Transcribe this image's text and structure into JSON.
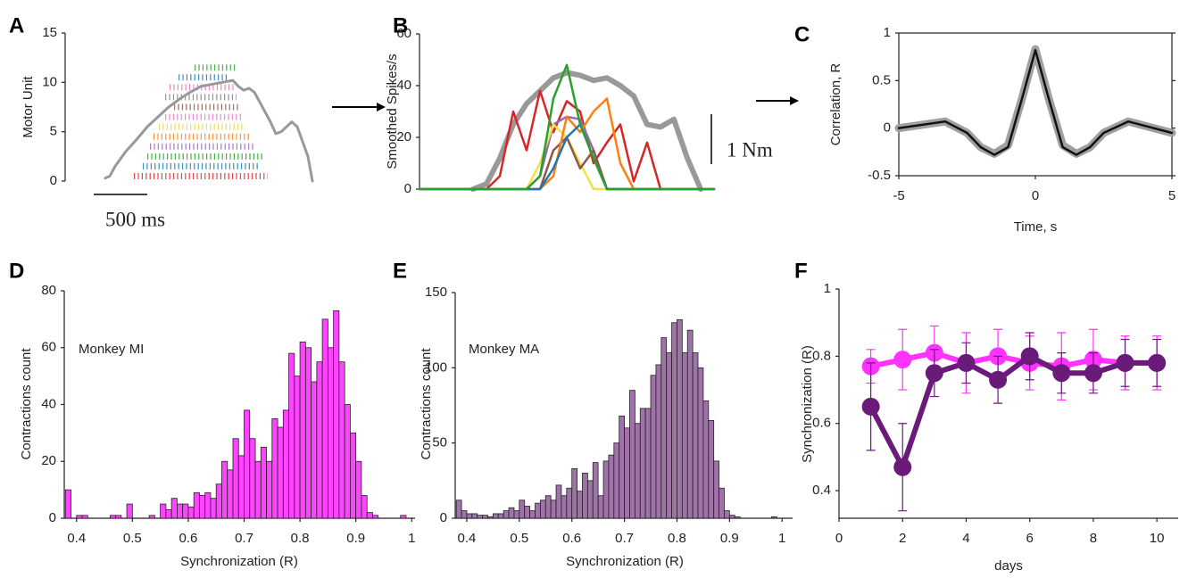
{
  "chart_data": [
    {
      "type": "raster",
      "panel": "A",
      "ylabel": "Motor Unit",
      "ylim": [
        0,
        15
      ],
      "yticks": [
        0,
        5,
        10,
        15
      ],
      "xlim": [
        0,
        2100
      ],
      "scalebar": {
        "value": 500,
        "label": "500 ms"
      },
      "raster": [
        {
          "unit": 0.5,
          "start": 375,
          "end": 1625,
          "color": "#d62728"
        },
        {
          "unit": 1.5,
          "start": 458,
          "end": 1542,
          "color": "#1f77b4"
        },
        {
          "unit": 2.5,
          "start": 500,
          "end": 1583,
          "color": "#2ca02c"
        },
        {
          "unit": 3.5,
          "start": 525,
          "end": 1500,
          "color": "#9467bd"
        },
        {
          "unit": 4.5,
          "start": 558,
          "end": 1458,
          "color": "#ff7f0e"
        },
        {
          "unit": 5.5,
          "start": 608,
          "end": 1417,
          "color": "#e6d74a"
        },
        {
          "unit": 6.5,
          "start": 667,
          "end": 1392,
          "color": "#e377c2"
        },
        {
          "unit": 7.5,
          "start": 750,
          "end": 1358,
          "color": "#8c564b"
        },
        {
          "unit": 8.5,
          "start": 667,
          "end": 1333,
          "color": "#7f7f7f"
        },
        {
          "unit": 9.5,
          "start": 708,
          "end": 1308,
          "color": "#e377c2"
        },
        {
          "unit": 10.5,
          "start": 792,
          "end": 1250,
          "color": "#1f77b4"
        },
        {
          "unit": 11.5,
          "start": 942,
          "end": 1333,
          "color": "#2ca02c"
        }
      ],
      "series": [
        {
          "color": "#999999",
          "x": [
            108,
            150,
            200,
            300,
            400,
            500,
            600,
            700,
            800,
            900,
            1000,
            1100,
            1200,
            1300,
            1350,
            1400,
            1450,
            1500,
            1550,
            1600,
            1650,
            1700,
            1750,
            1800,
            1850,
            1900,
            1950,
            2000,
            2042
          ],
          "values": [
            0.3,
            0.5,
            1.5,
            3,
            4.2,
            5.5,
            6.5,
            7.5,
            8.3,
            9,
            9.6,
            9.8,
            10,
            10.2,
            9.6,
            9.2,
            9.4,
            9,
            8,
            7,
            6,
            4.8,
            5,
            5.5,
            6,
            5.5,
            4,
            2.5,
            0
          ]
        }
      ]
    },
    {
      "type": "line",
      "panel": "B",
      "ylabel": "Smoothed Spikes/s",
      "ylim": [
        0,
        60
      ],
      "yticks": [
        0,
        20,
        40,
        60
      ],
      "xlim": [
        0,
        330
      ],
      "scalebar": {
        "label": "1 Nm"
      },
      "x": [
        0,
        15,
        30,
        45,
        60,
        75,
        90,
        105,
        120,
        135,
        150,
        165,
        180,
        195,
        210,
        225,
        240,
        255,
        270,
        285,
        300,
        315,
        330
      ],
      "series": [
        {
          "color": "#999999",
          "values": [
            null,
            null,
            null,
            null,
            0,
            2,
            12,
            25,
            33,
            38,
            43,
            45,
            44,
            42,
            43,
            40,
            36,
            25,
            24,
            27,
            12,
            0,
            null
          ]
        },
        {
          "color": "#d62728",
          "values": [
            0,
            0,
            0,
            0,
            0,
            0,
            5,
            30,
            15,
            38,
            22,
            34,
            30,
            10,
            18,
            25,
            3,
            18,
            0,
            0,
            0,
            0,
            0
          ]
        },
        {
          "color": "#9467bd",
          "values": [
            0,
            0,
            0,
            0,
            0,
            0,
            0,
            0,
            0,
            5,
            25,
            28,
            27,
            15,
            0,
            0,
            0,
            0,
            0,
            0,
            0,
            0,
            0
          ]
        },
        {
          "color": "#f2e14c",
          "values": [
            0,
            0,
            0,
            0,
            0,
            0,
            0,
            0,
            0,
            10,
            25,
            20,
            10,
            0,
            0,
            0,
            0,
            0,
            0,
            0,
            0,
            0,
            0
          ]
        },
        {
          "color": "#8c564b",
          "values": [
            0,
            0,
            0,
            0,
            0,
            0,
            0,
            0,
            0,
            0,
            15,
            20,
            8,
            15,
            0,
            0,
            0,
            0,
            0,
            0,
            0,
            0,
            0
          ]
        },
        {
          "color": "#ff7f0e",
          "values": [
            0,
            0,
            0,
            0,
            0,
            0,
            0,
            0,
            0,
            0,
            5,
            28,
            22,
            30,
            35,
            10,
            0,
            0,
            0,
            0,
            0,
            0,
            0
          ]
        },
        {
          "color": "#1f77b4",
          "values": [
            0,
            0,
            0,
            0,
            0,
            0,
            0,
            0,
            0,
            0,
            8,
            20,
            25,
            12,
            0,
            0,
            0,
            0,
            0,
            0,
            0,
            0,
            0
          ]
        },
        {
          "color": "#2ca02c",
          "values": [
            0,
            0,
            0,
            0,
            0,
            0,
            0,
            0,
            0,
            5,
            35,
            48,
            25,
            12,
            0,
            0,
            0,
            0,
            0,
            0,
            0,
            0,
            0
          ]
        }
      ]
    },
    {
      "type": "line",
      "panel": "C",
      "ylabel": "Correlation,  R",
      "xlabel": "Time, s",
      "ylim": [
        -0.5,
        1
      ],
      "yticks": [
        -0.5,
        0,
        0.5,
        1
      ],
      "xlim": [
        -5,
        5
      ],
      "xticks": [
        -5,
        0,
        5
      ],
      "x": [
        -5,
        -3.3,
        -2.5,
        -2,
        -1.5,
        -1,
        -0.5,
        0,
        0.5,
        1,
        1.5,
        2,
        2.5,
        3.4,
        5
      ],
      "series": [
        {
          "color": "#a0a0a0",
          "values": [
            0,
            0.07,
            -0.05,
            -0.2,
            -0.27,
            -0.18,
            0.3,
            0.83,
            0.3,
            -0.18,
            -0.27,
            -0.2,
            -0.05,
            0.07,
            -0.05
          ]
        },
        {
          "color": "#111111",
          "values": [
            0,
            0.07,
            -0.05,
            -0.2,
            -0.28,
            -0.2,
            0.3,
            0.82,
            0.3,
            -0.2,
            -0.28,
            -0.2,
            -0.05,
            0.07,
            -0.05
          ]
        }
      ]
    },
    {
      "type": "histogram",
      "panel": "D",
      "ylabel": "Contractions count",
      "xlabel": "Synchronization (R)",
      "annotation": "Monkey MI",
      "color": "#ff44ff",
      "xlim": [
        0.378,
        1.006
      ],
      "xticks": [
        0.4,
        0.5,
        0.6,
        0.7,
        0.8,
        0.9,
        1
      ],
      "ylim": [
        0,
        80
      ],
      "yticks": [
        0,
        20,
        40,
        60,
        80
      ],
      "bins": [
        0.38,
        0.39,
        0.4,
        0.41,
        0.42,
        0.43,
        0.44,
        0.45,
        0.46,
        0.47,
        0.48,
        0.49,
        0.5,
        0.51,
        0.52,
        0.53,
        0.54,
        0.55,
        0.56,
        0.57,
        0.58,
        0.59,
        0.6,
        0.61,
        0.62,
        0.63,
        0.64,
        0.65,
        0.66,
        0.67,
        0.68,
        0.69,
        0.7,
        0.71,
        0.72,
        0.73,
        0.74,
        0.75,
        0.76,
        0.77,
        0.78,
        0.79,
        0.8,
        0.81,
        0.82,
        0.83,
        0.84,
        0.85,
        0.86,
        0.87,
        0.88,
        0.89,
        0.9,
        0.91,
        0.92,
        0.93,
        0.94,
        0.95,
        0.96,
        0.97,
        0.98,
        0.99
      ],
      "values": [
        10,
        0,
        1,
        1,
        0,
        0,
        0,
        0,
        1,
        1,
        0,
        5,
        0,
        0,
        0,
        1,
        0,
        5,
        3,
        7,
        5,
        5,
        4,
        9,
        8,
        9,
        7,
        12,
        20,
        17,
        28,
        22,
        38,
        28,
        20,
        25,
        20,
        35,
        32,
        38,
        58,
        50,
        62,
        60,
        48,
        55,
        70,
        60,
        73,
        55,
        40,
        30,
        20,
        8,
        2,
        1,
        0,
        0,
        0,
        0,
        1
      ]
    },
    {
      "type": "histogram",
      "panel": "E",
      "ylabel": "Contractions count",
      "xlabel": "Synchronization (R)",
      "annotation": "Monkey MA",
      "color": "#9f72a8",
      "xlim": [
        0.378,
        1.02
      ],
      "xticks": [
        0.4,
        0.5,
        0.6,
        0.7,
        0.8,
        0.9,
        1
      ],
      "ylim": [
        0,
        150
      ],
      "yticks": [
        0,
        50,
        100,
        150
      ],
      "bins": [
        0.38,
        0.39,
        0.4,
        0.41,
        0.42,
        0.43,
        0.44,
        0.45,
        0.46,
        0.47,
        0.48,
        0.49,
        0.5,
        0.51,
        0.52,
        0.53,
        0.54,
        0.55,
        0.56,
        0.57,
        0.58,
        0.59,
        0.6,
        0.61,
        0.62,
        0.63,
        0.64,
        0.65,
        0.66,
        0.67,
        0.68,
        0.69,
        0.7,
        0.71,
        0.72,
        0.73,
        0.74,
        0.75,
        0.76,
        0.77,
        0.78,
        0.79,
        0.8,
        0.81,
        0.82,
        0.83,
        0.84,
        0.85,
        0.86,
        0.87,
        0.88,
        0.89,
        0.9,
        0.91,
        0.92,
        0.93,
        0.94,
        0.95,
        0.96,
        0.97,
        0.98,
        0.99
      ],
      "values": [
        12,
        5,
        3,
        3,
        2,
        2,
        1,
        3,
        3,
        5,
        7,
        5,
        12,
        8,
        5,
        10,
        12,
        15,
        12,
        22,
        15,
        20,
        33,
        18,
        30,
        25,
        37,
        15,
        38,
        42,
        50,
        68,
        60,
        85,
        63,
        73,
        73,
        95,
        102,
        120,
        110,
        130,
        132,
        110,
        125,
        110,
        100,
        78,
        65,
        38,
        20,
        5,
        2,
        1,
        0,
        0,
        0,
        0,
        0,
        0,
        1
      ]
    },
    {
      "type": "errorbar",
      "panel": "F",
      "ylabel": "Synchronization (R)",
      "xlabel": "days",
      "xlim": [
        0,
        10.67
      ],
      "xticks": [
        0,
        2,
        4,
        6,
        8,
        10
      ],
      "ylim": [
        0.318,
        1
      ],
      "yticks": [
        0.4,
        0.6,
        0.8,
        1
      ],
      "x": [
        1,
        2,
        3,
        4,
        5,
        6,
        7,
        8,
        9,
        10
      ],
      "series": [
        {
          "color": "#ff33ff",
          "values": [
            0.77,
            0.79,
            0.81,
            0.78,
            0.8,
            0.78,
            0.77,
            0.79,
            0.78,
            0.78
          ],
          "errors": [
            0.05,
            0.09,
            0.08,
            0.09,
            0.08,
            0.08,
            0.1,
            0.09,
            0.08,
            0.08
          ]
        },
        {
          "color": "#6a1b7a",
          "values": [
            0.65,
            0.47,
            0.75,
            0.78,
            0.73,
            0.8,
            0.75,
            0.75,
            0.78,
            0.78
          ],
          "errors": [
            0.13,
            0.13,
            0.07,
            0.06,
            0.07,
            0.07,
            0.06,
            0.06,
            0.07,
            0.07
          ]
        }
      ]
    }
  ]
}
